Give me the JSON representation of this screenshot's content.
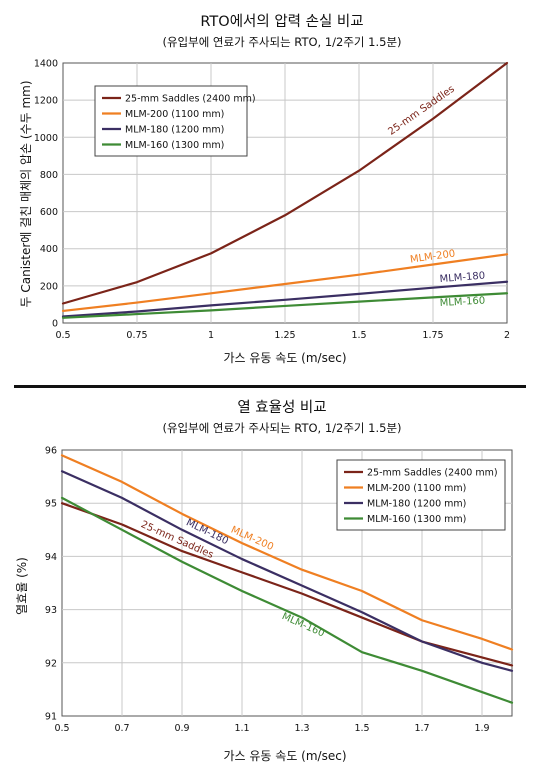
{
  "chart_data": [
    {
      "type": "line",
      "title": "RTO에서의 압력 손실 비교",
      "subtitle": "(유입부에 연료가 주사되는 RTO, 1/2주기 1.5분)",
      "xlabel": "가스 유동 속도 (m/sec)",
      "ylabel": "두 Canister에 걸친 매체의 압손 (수두 mm)",
      "xlim": [
        0.5,
        2
      ],
      "ylim": [
        0,
        1400
      ],
      "x_ticks": [
        "0.5",
        "0.75",
        "1",
        "1.25",
        "1.5",
        "1.75",
        "2"
      ],
      "y_ticks": [
        "0",
        "200",
        "400",
        "600",
        "800",
        "1000",
        "1200",
        "1400"
      ],
      "grid": true,
      "legend_position": "top-left",
      "series": [
        {
          "name": "25-mm Saddles (2400 mm)",
          "label": "25-mm Saddles",
          "color": "#7b2419",
          "points": [
            [
              0.5,
              105
            ],
            [
              0.75,
              220
            ],
            [
              1,
              375
            ],
            [
              1.25,
              580
            ],
            [
              1.5,
              820
            ],
            [
              1.75,
              1100
            ],
            [
              2,
              1400
            ]
          ]
        },
        {
          "name": "MLM-200 (1100 mm)",
          "label": "MLM-200",
          "color": "#ef7f22",
          "points": [
            [
              0.5,
              65
            ],
            [
              0.75,
              110
            ],
            [
              1,
              160
            ],
            [
              1.25,
              210
            ],
            [
              1.5,
              260
            ],
            [
              1.75,
              315
            ],
            [
              2,
              370
            ]
          ]
        },
        {
          "name": "MLM-180 (1200 mm)",
          "label": "MLM-180",
          "color": "#3b2f63",
          "points": [
            [
              0.5,
              35
            ],
            [
              0.75,
              62
            ],
            [
              1,
              95
            ],
            [
              1.25,
              125
            ],
            [
              1.5,
              157
            ],
            [
              1.75,
              190
            ],
            [
              2,
              222
            ]
          ]
        },
        {
          "name": "MLM-160 (1300 mm)",
          "label": "MLM-160",
          "color": "#3e8b35",
          "points": [
            [
              0.5,
              28
            ],
            [
              0.75,
              48
            ],
            [
              1,
              68
            ],
            [
              1.25,
              92
            ],
            [
              1.5,
              115
            ],
            [
              1.75,
              138
            ],
            [
              2,
              160
            ]
          ]
        }
      ]
    },
    {
      "type": "line",
      "title": "열 효율성 비교",
      "subtitle": "(유입부에 연료가 주사되는 RTO, 1/2주기 1.5분)",
      "xlabel": "가스 유동 속도 (m/sec)",
      "ylabel": "열효율 (%)",
      "xlim": [
        0.5,
        2
      ],
      "ylim": [
        91,
        96
      ],
      "x_ticks": [
        "0.5",
        "0.7",
        "0.9",
        "1.1",
        "1.3",
        "1.5",
        "1.7",
        "1.9"
      ],
      "y_ticks": [
        "91",
        "92",
        "93",
        "94",
        "95",
        "96"
      ],
      "grid": true,
      "legend_position": "top-right",
      "series": [
        {
          "name": "25-mm Saddles (2400 mm)",
          "label": "25-mm Saddles",
          "color": "#7b2419",
          "points": [
            [
              0.5,
              95.0
            ],
            [
              0.7,
              94.6
            ],
            [
              0.9,
              94.1
            ],
            [
              1.1,
              93.7
            ],
            [
              1.3,
              93.3
            ],
            [
              1.5,
              92.85
            ],
            [
              1.7,
              92.4
            ],
            [
              1.9,
              92.1
            ],
            [
              2,
              91.95
            ]
          ]
        },
        {
          "name": "MLM-200 (1100 mm)",
          "label": "MLM-200",
          "color": "#ef7f22",
          "points": [
            [
              0.5,
              95.9
            ],
            [
              0.7,
              95.4
            ],
            [
              0.9,
              94.8
            ],
            [
              1.1,
              94.25
            ],
            [
              1.3,
              93.75
            ],
            [
              1.5,
              93.35
            ],
            [
              1.7,
              92.8
            ],
            [
              1.9,
              92.45
            ],
            [
              2,
              92.25
            ]
          ]
        },
        {
          "name": "MLM-180 (1200 mm)",
          "label": "MLM-180",
          "color": "#3b2f63",
          "points": [
            [
              0.5,
              95.6
            ],
            [
              0.7,
              95.1
            ],
            [
              0.9,
              94.5
            ],
            [
              1.1,
              93.95
            ],
            [
              1.3,
              93.45
            ],
            [
              1.5,
              92.95
            ],
            [
              1.7,
              92.4
            ],
            [
              1.9,
              92.0
            ],
            [
              2,
              91.85
            ]
          ]
        },
        {
          "name": "MLM-160 (1300 mm)",
          "label": "MLM-160",
          "color": "#3e8b35",
          "points": [
            [
              0.5,
              95.1
            ],
            [
              0.7,
              94.5
            ],
            [
              0.9,
              93.9
            ],
            [
              1.1,
              93.35
            ],
            [
              1.3,
              92.85
            ],
            [
              1.5,
              92.2
            ],
            [
              1.7,
              91.85
            ],
            [
              1.9,
              91.45
            ],
            [
              2,
              91.25
            ]
          ]
        }
      ]
    }
  ]
}
